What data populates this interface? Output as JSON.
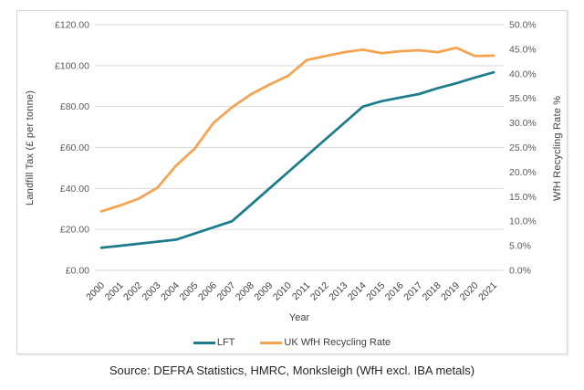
{
  "source_text": "Source: DEFRA Statistics, HMRC, Monksleigh (WfH excl. IBA metals)",
  "chart_data": {
    "type": "line",
    "xlabel": "Year",
    "ylabel_left": "Landfill Tax (£ per tonne)",
    "ylabel_right": "WfH Recycling Rate %",
    "grid": true,
    "legend_position": "bottom",
    "categories": [
      "2000",
      "2001",
      "2002",
      "2003",
      "2004",
      "2005",
      "2006",
      "2007",
      "2008",
      "2009",
      "2010",
      "2011",
      "2012",
      "2013",
      "2014",
      "2015",
      "2016",
      "2017",
      "2018",
      "2019",
      "2020",
      "2021"
    ],
    "left_axis": {
      "min": 0,
      "max": 120,
      "step": 20,
      "tick_labels": [
        "£0.00",
        "£20.00",
        "£40.00",
        "£60.00",
        "£80.00",
        "£100.00",
        "£120.00"
      ]
    },
    "right_axis": {
      "min": 0,
      "max": 50,
      "step": 5,
      "tick_labels": [
        "0.0%",
        "5.0%",
        "10.0%",
        "15.0%",
        "20.0%",
        "25.0%",
        "30.0%",
        "35.0%",
        "40.0%",
        "45.0%",
        "50.0%"
      ]
    },
    "series": [
      {
        "name": "LFT",
        "axis": "left",
        "color": "#1B7C8D",
        "values": [
          11,
          12,
          13,
          14,
          15,
          18,
          21,
          24,
          32,
          40,
          48,
          56,
          64,
          72,
          80,
          82.6,
          84.4,
          86.1,
          88.95,
          91.35,
          94.15,
          96.7
        ]
      },
      {
        "name": "UK WfH Recycling Rate",
        "axis": "right",
        "color": "#F6A350",
        "values": [
          12.0,
          13.2,
          14.6,
          16.8,
          21.3,
          24.8,
          30.0,
          33.2,
          35.8,
          37.8,
          39.6,
          42.8,
          43.6,
          44.4,
          44.9,
          44.2,
          44.6,
          44.8,
          44.4,
          45.3,
          43.6,
          43.7
        ]
      }
    ],
    "style": {
      "gridline_color": "#d9d9d9",
      "tick_label_color": "#595959",
      "x_label_color": "#404040",
      "line_width": 2.75
    }
  }
}
